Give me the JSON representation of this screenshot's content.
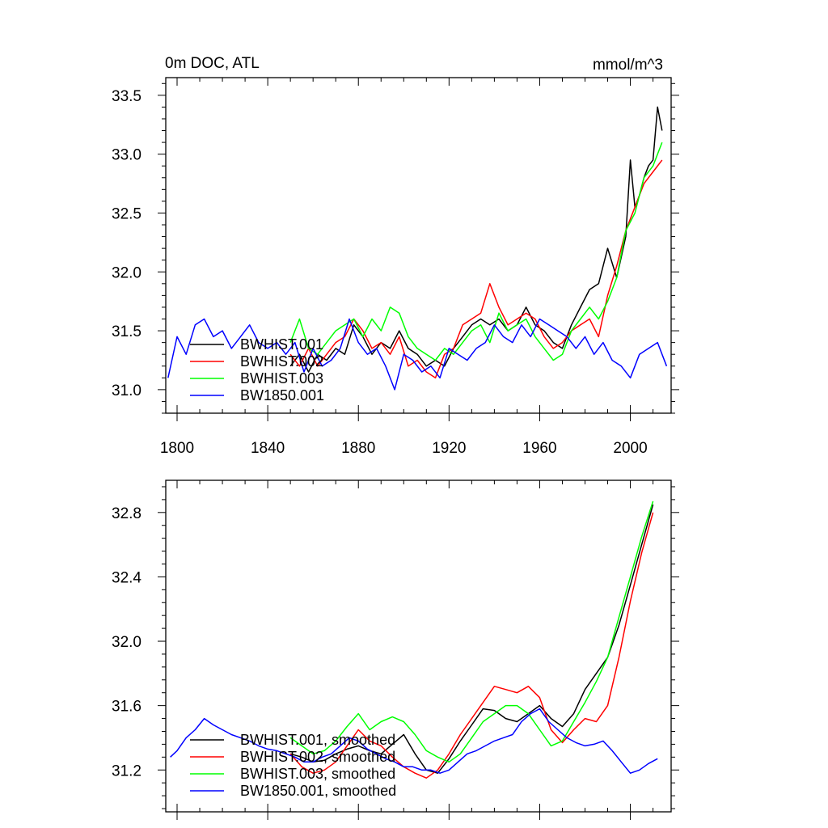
{
  "colors": {
    "BWHIST.001": "#000000",
    "BWHIST.002": "#ff0000",
    "BWHIST.003": "#00ff00",
    "BW1850.001": "#0000ff"
  },
  "chart_data": [
    {
      "type": "line",
      "title": "0m DOC, ATL",
      "units": "mmol/m^3",
      "xlim": [
        1795,
        2018
      ],
      "ylim": [
        30.8,
        33.65
      ],
      "x_ticks": [
        1800,
        1840,
        1880,
        1920,
        1960,
        2000
      ],
      "x_tick_labels": [
        "1800",
        "1840",
        "1880",
        "1920",
        "1960",
        "2000"
      ],
      "y_ticks": [
        31.0,
        31.5,
        32.0,
        32.5,
        33.0,
        33.5
      ],
      "y_tick_labels": [
        "31.0",
        "31.5",
        "32.0",
        "32.5",
        "33.0",
        "33.5"
      ],
      "legend_position": "bottom-left",
      "series": [
        {
          "name": "BWHIST.001",
          "color": "#000000",
          "x": [
            1850,
            1854,
            1858,
            1862,
            1866,
            1870,
            1874,
            1878,
            1882,
            1886,
            1890,
            1894,
            1898,
            1902,
            1906,
            1910,
            1914,
            1918,
            1922,
            1926,
            1930,
            1934,
            1938,
            1942,
            1946,
            1950,
            1954,
            1958,
            1962,
            1966,
            1970,
            1974,
            1978,
            1982,
            1986,
            1990,
            1994,
            1998,
            2000,
            2002,
            2004,
            2006,
            2008,
            2010,
            2012,
            2014
          ],
          "y": [
            31.2,
            31.3,
            31.15,
            31.3,
            31.25,
            31.35,
            31.3,
            31.55,
            31.45,
            31.3,
            31.4,
            31.35,
            31.5,
            31.35,
            31.3,
            31.2,
            31.25,
            31.2,
            31.35,
            31.45,
            31.55,
            31.6,
            31.55,
            31.6,
            31.5,
            31.55,
            31.7,
            31.55,
            31.5,
            31.4,
            31.35,
            31.55,
            31.7,
            31.85,
            31.9,
            32.2,
            31.95,
            32.3,
            32.95,
            32.55,
            32.65,
            32.8,
            32.9,
            32.95,
            33.4,
            33.2
          ]
        },
        {
          "name": "BWHIST.002",
          "color": "#ff0000",
          "x": [
            1850,
            1854,
            1858,
            1862,
            1866,
            1870,
            1874,
            1878,
            1882,
            1886,
            1890,
            1894,
            1898,
            1902,
            1906,
            1910,
            1914,
            1918,
            1922,
            1926,
            1930,
            1934,
            1938,
            1942,
            1946,
            1950,
            1954,
            1958,
            1962,
            1966,
            1970,
            1974,
            1978,
            1982,
            1986,
            1990,
            1994,
            1998,
            2002,
            2006,
            2010,
            2014
          ],
          "y": [
            31.3,
            31.2,
            31.35,
            31.2,
            31.3,
            31.4,
            31.45,
            31.6,
            31.5,
            31.35,
            31.4,
            31.3,
            31.45,
            31.2,
            31.25,
            31.15,
            31.1,
            31.3,
            31.35,
            31.55,
            31.6,
            31.65,
            31.9,
            31.7,
            31.55,
            31.6,
            31.65,
            31.6,
            31.45,
            31.35,
            31.4,
            31.5,
            31.55,
            31.6,
            31.45,
            31.8,
            32.05,
            32.35,
            32.55,
            32.75,
            32.85,
            32.95
          ]
        },
        {
          "name": "BWHIST.003",
          "color": "#00ff00",
          "x": [
            1850,
            1854,
            1858,
            1862,
            1866,
            1870,
            1874,
            1878,
            1882,
            1886,
            1890,
            1894,
            1898,
            1902,
            1906,
            1910,
            1914,
            1918,
            1922,
            1926,
            1930,
            1934,
            1938,
            1942,
            1946,
            1950,
            1954,
            1958,
            1962,
            1966,
            1970,
            1974,
            1978,
            1982,
            1986,
            1990,
            1994,
            1998,
            2002,
            2006,
            2010,
            2014
          ],
          "y": [
            31.4,
            31.6,
            31.35,
            31.3,
            31.4,
            31.5,
            31.55,
            31.6,
            31.45,
            31.6,
            31.5,
            31.7,
            31.65,
            31.45,
            31.35,
            31.3,
            31.25,
            31.35,
            31.3,
            31.4,
            31.5,
            31.55,
            31.4,
            31.65,
            31.5,
            31.55,
            31.6,
            31.45,
            31.35,
            31.25,
            31.3,
            31.5,
            31.6,
            31.7,
            31.6,
            31.75,
            31.95,
            32.35,
            32.5,
            32.8,
            32.9,
            33.1
          ]
        },
        {
          "name": "BW1850.001",
          "color": "#0000ff",
          "x": [
            1796,
            1800,
            1804,
            1808,
            1812,
            1816,
            1820,
            1824,
            1828,
            1832,
            1836,
            1840,
            1844,
            1848,
            1852,
            1856,
            1860,
            1864,
            1868,
            1872,
            1876,
            1880,
            1884,
            1888,
            1892,
            1896,
            1900,
            1904,
            1908,
            1912,
            1916,
            1920,
            1924,
            1928,
            1932,
            1936,
            1940,
            1944,
            1948,
            1952,
            1956,
            1960,
            1964,
            1968,
            1972,
            1976,
            1980,
            1984,
            1988,
            1992,
            1996,
            2000,
            2004,
            2008,
            2012,
            2016
          ],
          "y": [
            31.1,
            31.45,
            31.3,
            31.55,
            31.6,
            31.45,
            31.5,
            31.35,
            31.45,
            31.55,
            31.4,
            31.35,
            31.4,
            31.3,
            31.4,
            31.15,
            31.35,
            31.2,
            31.25,
            31.35,
            31.6,
            31.4,
            31.3,
            31.35,
            31.2,
            31.0,
            31.3,
            31.25,
            31.15,
            31.2,
            31.1,
            31.35,
            31.3,
            31.25,
            31.35,
            31.4,
            31.55,
            31.45,
            31.4,
            31.55,
            31.45,
            31.6,
            31.55,
            31.5,
            31.45,
            31.35,
            31.45,
            31.3,
            31.4,
            31.25,
            31.2,
            31.1,
            31.3,
            31.35,
            31.4,
            31.2
          ]
        }
      ]
    },
    {
      "type": "line",
      "xlim": [
        1795,
        2018
      ],
      "ylim": [
        30.94,
        33.0
      ],
      "x_ticks": [
        1800,
        1840,
        1880,
        1920,
        1960,
        2000
      ],
      "y_ticks": [
        31.2,
        31.6,
        32.0,
        32.4,
        32.8
      ],
      "y_tick_labels": [
        "31.2",
        "31.6",
        "32.0",
        "32.4",
        "32.8"
      ],
      "legend_position": "bottom-left",
      "series": [
        {
          "name": "BWHIST.001, smoothed",
          "color": "#000000",
          "x": [
            1850,
            1855,
            1860,
            1865,
            1870,
            1875,
            1880,
            1885,
            1890,
            1895,
            1900,
            1905,
            1910,
            1915,
            1920,
            1925,
            1930,
            1935,
            1940,
            1945,
            1950,
            1955,
            1960,
            1965,
            1970,
            1975,
            1980,
            1985,
            1990,
            1995,
            2000,
            2005,
            2010
          ],
          "y": [
            31.3,
            31.28,
            31.25,
            31.26,
            31.3,
            31.33,
            31.35,
            31.32,
            31.3,
            31.36,
            31.42,
            31.3,
            31.2,
            31.18,
            31.27,
            31.38,
            31.48,
            31.58,
            31.57,
            31.52,
            31.5,
            31.55,
            31.6,
            31.52,
            31.47,
            31.55,
            31.7,
            31.8,
            31.9,
            32.1,
            32.35,
            32.6,
            32.85
          ]
        },
        {
          "name": "BWHIST.002, smoothed",
          "color": "#ff0000",
          "x": [
            1850,
            1855,
            1860,
            1865,
            1870,
            1875,
            1880,
            1885,
            1890,
            1895,
            1900,
            1905,
            1910,
            1915,
            1920,
            1925,
            1930,
            1935,
            1940,
            1945,
            1950,
            1955,
            1960,
            1965,
            1970,
            1975,
            1980,
            1985,
            1990,
            1995,
            2000,
            2005,
            2010
          ],
          "y": [
            31.3,
            31.22,
            31.18,
            31.2,
            31.25,
            31.35,
            31.45,
            31.38,
            31.35,
            31.28,
            31.22,
            31.18,
            31.15,
            31.2,
            31.3,
            31.42,
            31.52,
            31.62,
            31.72,
            31.7,
            31.68,
            31.72,
            31.65,
            31.45,
            31.37,
            31.45,
            31.52,
            31.5,
            31.6,
            31.9,
            32.25,
            32.55,
            32.8
          ]
        },
        {
          "name": "BWHIST.003, smoothed",
          "color": "#00ff00",
          "x": [
            1850,
            1855,
            1860,
            1865,
            1870,
            1875,
            1880,
            1885,
            1890,
            1895,
            1900,
            1905,
            1910,
            1915,
            1920,
            1925,
            1930,
            1935,
            1940,
            1945,
            1950,
            1955,
            1960,
            1965,
            1970,
            1975,
            1980,
            1985,
            1990,
            1995,
            2000,
            2005,
            2010
          ],
          "y": [
            31.4,
            31.35,
            31.3,
            31.32,
            31.38,
            31.47,
            31.55,
            31.45,
            31.5,
            31.53,
            31.5,
            31.42,
            31.32,
            31.28,
            31.25,
            31.3,
            31.4,
            31.5,
            31.55,
            31.6,
            31.6,
            31.55,
            31.45,
            31.35,
            31.38,
            31.5,
            31.62,
            31.75,
            31.9,
            32.15,
            32.4,
            32.65,
            32.87
          ]
        },
        {
          "name": "BW1850.001, smoothed",
          "color": "#0000ff",
          "x": [
            1797,
            1800,
            1804,
            1808,
            1812,
            1816,
            1820,
            1824,
            1828,
            1832,
            1836,
            1840,
            1844,
            1848,
            1852,
            1856,
            1860,
            1864,
            1868,
            1872,
            1876,
            1880,
            1884,
            1888,
            1892,
            1896,
            1900,
            1904,
            1908,
            1912,
            1916,
            1920,
            1924,
            1928,
            1932,
            1936,
            1940,
            1944,
            1948,
            1952,
            1956,
            1960,
            1964,
            1968,
            1972,
            1976,
            1980,
            1984,
            1988,
            1992,
            1996,
            2000,
            2004,
            2008,
            2012
          ],
          "y": [
            31.28,
            31.32,
            31.4,
            31.45,
            31.52,
            31.48,
            31.45,
            31.42,
            31.4,
            31.38,
            31.35,
            31.33,
            31.32,
            31.3,
            31.28,
            31.25,
            31.25,
            31.28,
            31.3,
            31.35,
            31.4,
            31.38,
            31.33,
            31.3,
            31.27,
            31.25,
            31.22,
            31.22,
            31.2,
            31.2,
            31.18,
            31.2,
            31.25,
            31.3,
            31.32,
            31.35,
            31.38,
            31.4,
            31.42,
            31.5,
            31.55,
            31.58,
            31.5,
            31.45,
            31.4,
            31.37,
            31.35,
            31.36,
            31.38,
            31.32,
            31.25,
            31.18,
            31.2,
            31.24,
            31.27
          ]
        }
      ]
    }
  ]
}
